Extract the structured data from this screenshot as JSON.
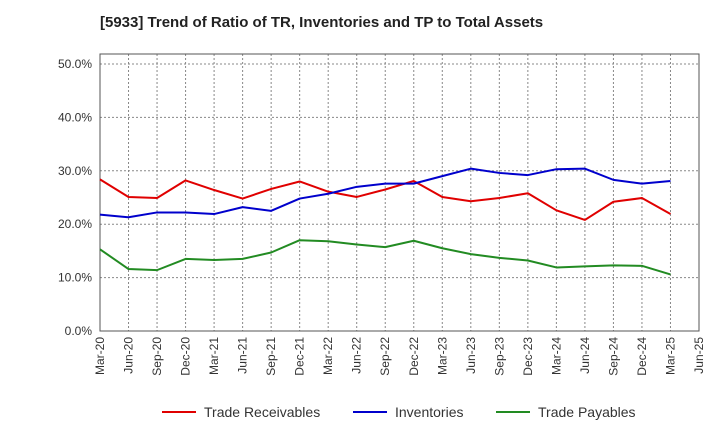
{
  "chart_data": {
    "type": "line",
    "title": "[5933]  Trend of Ratio of TR, Inventories and TP to Total Assets",
    "x": [
      "Mar-20",
      "Jun-20",
      "Sep-20",
      "Dec-20",
      "Mar-21",
      "Jun-21",
      "Sep-21",
      "Dec-21",
      "Mar-22",
      "Jun-22",
      "Sep-22",
      "Dec-22",
      "Mar-23",
      "Jun-23",
      "Sep-23",
      "Dec-23",
      "Mar-24",
      "Jun-24",
      "Sep-24",
      "Dec-24",
      "Mar-25"
    ],
    "x_ticks": [
      "Mar-20",
      "Jun-20",
      "Sep-20",
      "Dec-20",
      "Mar-21",
      "Jun-21",
      "Sep-21",
      "Dec-21",
      "Mar-22",
      "Jun-22",
      "Sep-22",
      "Dec-22",
      "Mar-23",
      "Jun-23",
      "Sep-23",
      "Dec-23",
      "Mar-24",
      "Jun-24",
      "Sep-24",
      "Dec-24",
      "Mar-25",
      "Jun-25"
    ],
    "y_ticks": [
      "0.0%",
      "10.0%",
      "20.0%",
      "30.0%",
      "40.0%",
      "50.0%"
    ],
    "ylim": [
      0,
      50
    ],
    "grid": true,
    "legend_position": "bottom",
    "series": [
      {
        "name": "Trade Receivables",
        "color": "#e00000",
        "values": [
          28.4,
          25.1,
          24.9,
          28.2,
          26.4,
          24.8,
          26.6,
          28.0,
          26.1,
          25.1,
          26.5,
          28.1,
          25.1,
          24.3,
          24.9,
          25.8,
          22.6,
          20.8,
          24.2,
          24.9,
          21.9
        ]
      },
      {
        "name": "Inventories",
        "color": "#0000cc",
        "values": [
          21.8,
          21.3,
          22.2,
          22.2,
          21.9,
          23.2,
          22.5,
          24.8,
          25.7,
          27.0,
          27.6,
          27.6,
          29.0,
          30.4,
          29.6,
          29.2,
          30.3,
          30.4,
          28.3,
          27.6,
          28.1
        ]
      },
      {
        "name": "Trade Payables",
        "color": "#228b22",
        "values": [
          15.3,
          11.6,
          11.4,
          13.5,
          13.3,
          13.5,
          14.7,
          17.0,
          16.8,
          16.2,
          15.7,
          16.9,
          15.5,
          14.4,
          13.7,
          13.2,
          11.9,
          12.1,
          12.3,
          12.2,
          10.6
        ]
      }
    ]
  }
}
